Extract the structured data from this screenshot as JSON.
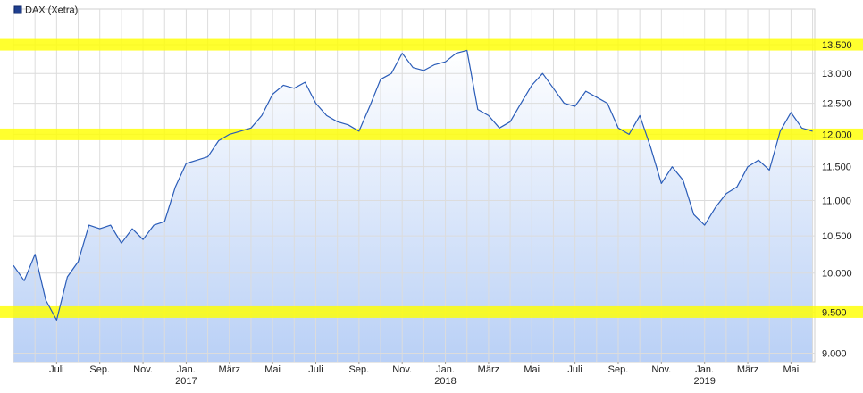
{
  "chart_data": {
    "type": "line",
    "log_scale": true,
    "grid": true,
    "legend": "top-left",
    "highlight_levels": [
      13500,
      12000,
      9500
    ],
    "highlight_color": "#ffff00",
    "fill_gradient": [
      "#ffffff",
      "#b9d0f6"
    ],
    "categories": [
      null,
      null,
      null,
      null,
      "Juli",
      null,
      null,
      null,
      "Sep.",
      null,
      null,
      null,
      "Nov.",
      null,
      null,
      null,
      "Jan.\n2017",
      null,
      null,
      null,
      "März",
      null,
      null,
      null,
      "Mai",
      null,
      null,
      null,
      "Juli",
      null,
      null,
      null,
      "Sep.",
      null,
      null,
      null,
      "Nov.",
      null,
      null,
      null,
      "Jan.\n2018",
      null,
      null,
      null,
      "März",
      null,
      null,
      null,
      "Mai",
      null,
      null,
      null,
      "Juli",
      null,
      null,
      null,
      "Sep.",
      null,
      null,
      null,
      "Nov.",
      null,
      null,
      null,
      "Jan.\n2019",
      null,
      null,
      null,
      "März",
      null,
      null,
      null,
      "Mai",
      null,
      null
    ],
    "series": [
      {
        "name": "DAX (Xetra)",
        "color": "#2a5cb8",
        "values": [
          10100,
          9900,
          10250,
          9650,
          9400,
          9950,
          10150,
          10650,
          10600,
          10650,
          10400,
          10600,
          10450,
          10650,
          10700,
          11200,
          11550,
          11600,
          11650,
          11900,
          12000,
          12050,
          12100,
          12300,
          12650,
          12800,
          12750,
          12850,
          12500,
          12300,
          12200,
          12150,
          12050,
          12450,
          12900,
          13000,
          13350,
          13100,
          13050,
          13150,
          13200,
          13350,
          13400,
          12400,
          12300,
          12100,
          12200,
          12500,
          12800,
          13000,
          12750,
          12500,
          12450,
          12700,
          12600,
          12500,
          12100,
          12000,
          12300,
          11800,
          11250,
          11500,
          11300,
          10800,
          10650,
          10900,
          11100,
          11200,
          11500,
          11600,
          11450,
          12050,
          12350,
          12100,
          12050
        ]
      }
    ],
    "ylim": [
      8900,
      14150
    ],
    "yticks": [
      {
        "value": 9000,
        "label": "9.000"
      },
      {
        "value": 9500,
        "label": "9.500"
      },
      {
        "value": 10000,
        "label": "10.000"
      },
      {
        "value": 10500,
        "label": "10.500"
      },
      {
        "value": 11000,
        "label": "11.000"
      },
      {
        "value": 11500,
        "label": "11.500"
      },
      {
        "value": 12000,
        "label": "12.000"
      },
      {
        "value": 12500,
        "label": "12.500"
      },
      {
        "value": 13000,
        "label": "13.000"
      },
      {
        "value": 13500,
        "label": "13.500"
      }
    ]
  }
}
